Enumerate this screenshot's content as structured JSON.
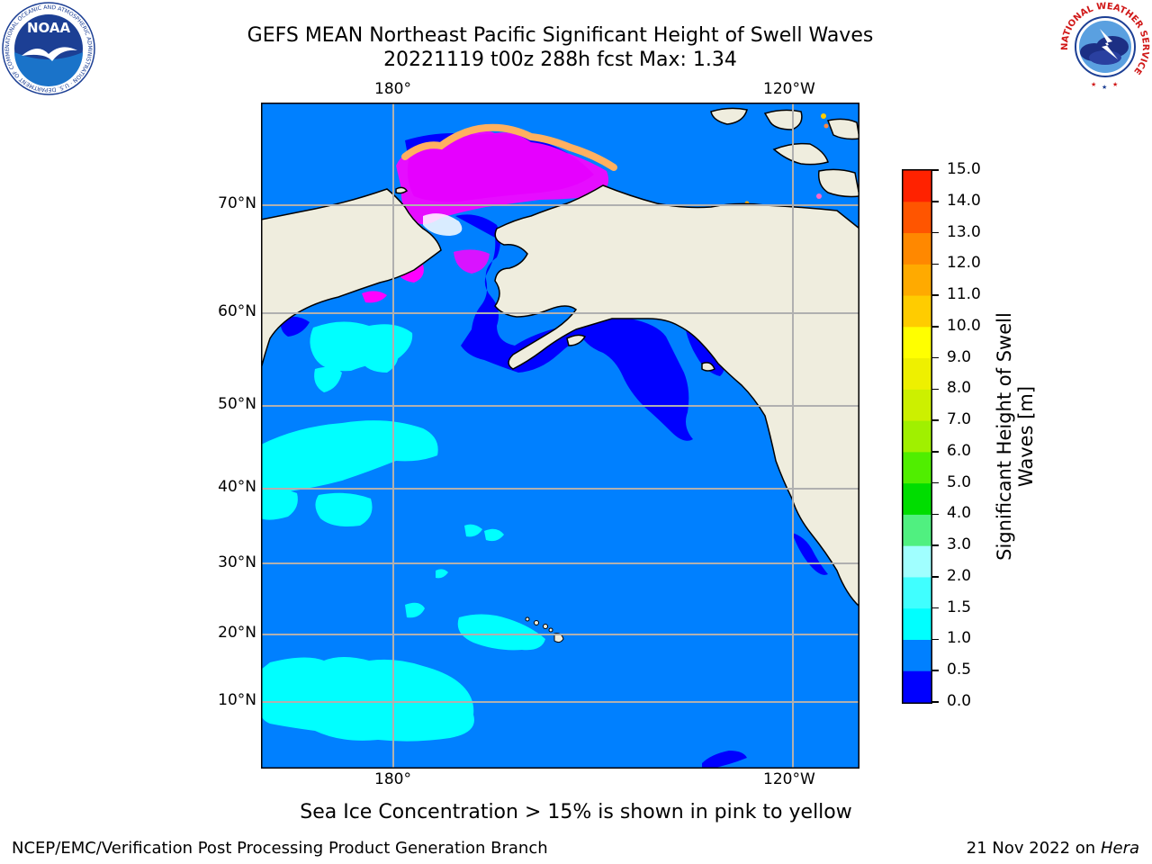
{
  "header": {
    "title_line1": "GEFS MEAN Northeast Pacific Significant Height of Swell Waves",
    "title_line2": "20221119 t00z 288h fcst   Max: 1.34"
  },
  "logos": {
    "noaa": {
      "text": "NOAA",
      "ring_text": "NATIONAL OCEANIC AND ATMOSPHERIC ADMINISTRATION · U.S. DEPARTMENT OF COMMERCE"
    },
    "nws": {
      "ring_text": "NATIONAL WEATHER SERVICE"
    }
  },
  "map": {
    "lon_labels_top": [
      "180°",
      "120°W"
    ],
    "lon_labels_bottom": [
      "180°",
      "120°W"
    ],
    "lat_labels": [
      "70°N",
      "60°N",
      "50°N",
      "40°N",
      "30°N",
      "20°N",
      "10°N"
    ],
    "colors": {
      "ocean": "#0080ff",
      "land": "#efedde",
      "deep_blue": "#0000ff",
      "cyan": "#00ffff",
      "ice_pink": "#ff00ff",
      "ice_orange": "#ffb060"
    }
  },
  "colorbar": {
    "label": "Significant Height of Swell Waves [m]",
    "ticks": [
      "0.0",
      "0.5",
      "1.0",
      "1.5",
      "2.0",
      "3.0",
      "4.0",
      "5.0",
      "6.0",
      "7.0",
      "8.0",
      "9.0",
      "10.0",
      "11.0",
      "12.0",
      "13.0",
      "14.0",
      "15.0"
    ],
    "colors": [
      "#0000ff",
      "#0080ff",
      "#00ffff",
      "#40ffff",
      "#a0ffff",
      "#50f080",
      "#00dd00",
      "#50ee00",
      "#a0f000",
      "#ccf000",
      "#eef000",
      "#ffff00",
      "#ffcc00",
      "#ffaa00",
      "#ff8800",
      "#ff5500",
      "#ff2200",
      "#ff0000"
    ]
  },
  "footer": {
    "sea_ice_note": "Sea Ice Concentration > 15% is shown in pink to yellow",
    "credit": "NCEP/EMC/Verification Post Processing Product Generation Branch",
    "date": "21 Nov 2022 on",
    "host": "Hera"
  }
}
